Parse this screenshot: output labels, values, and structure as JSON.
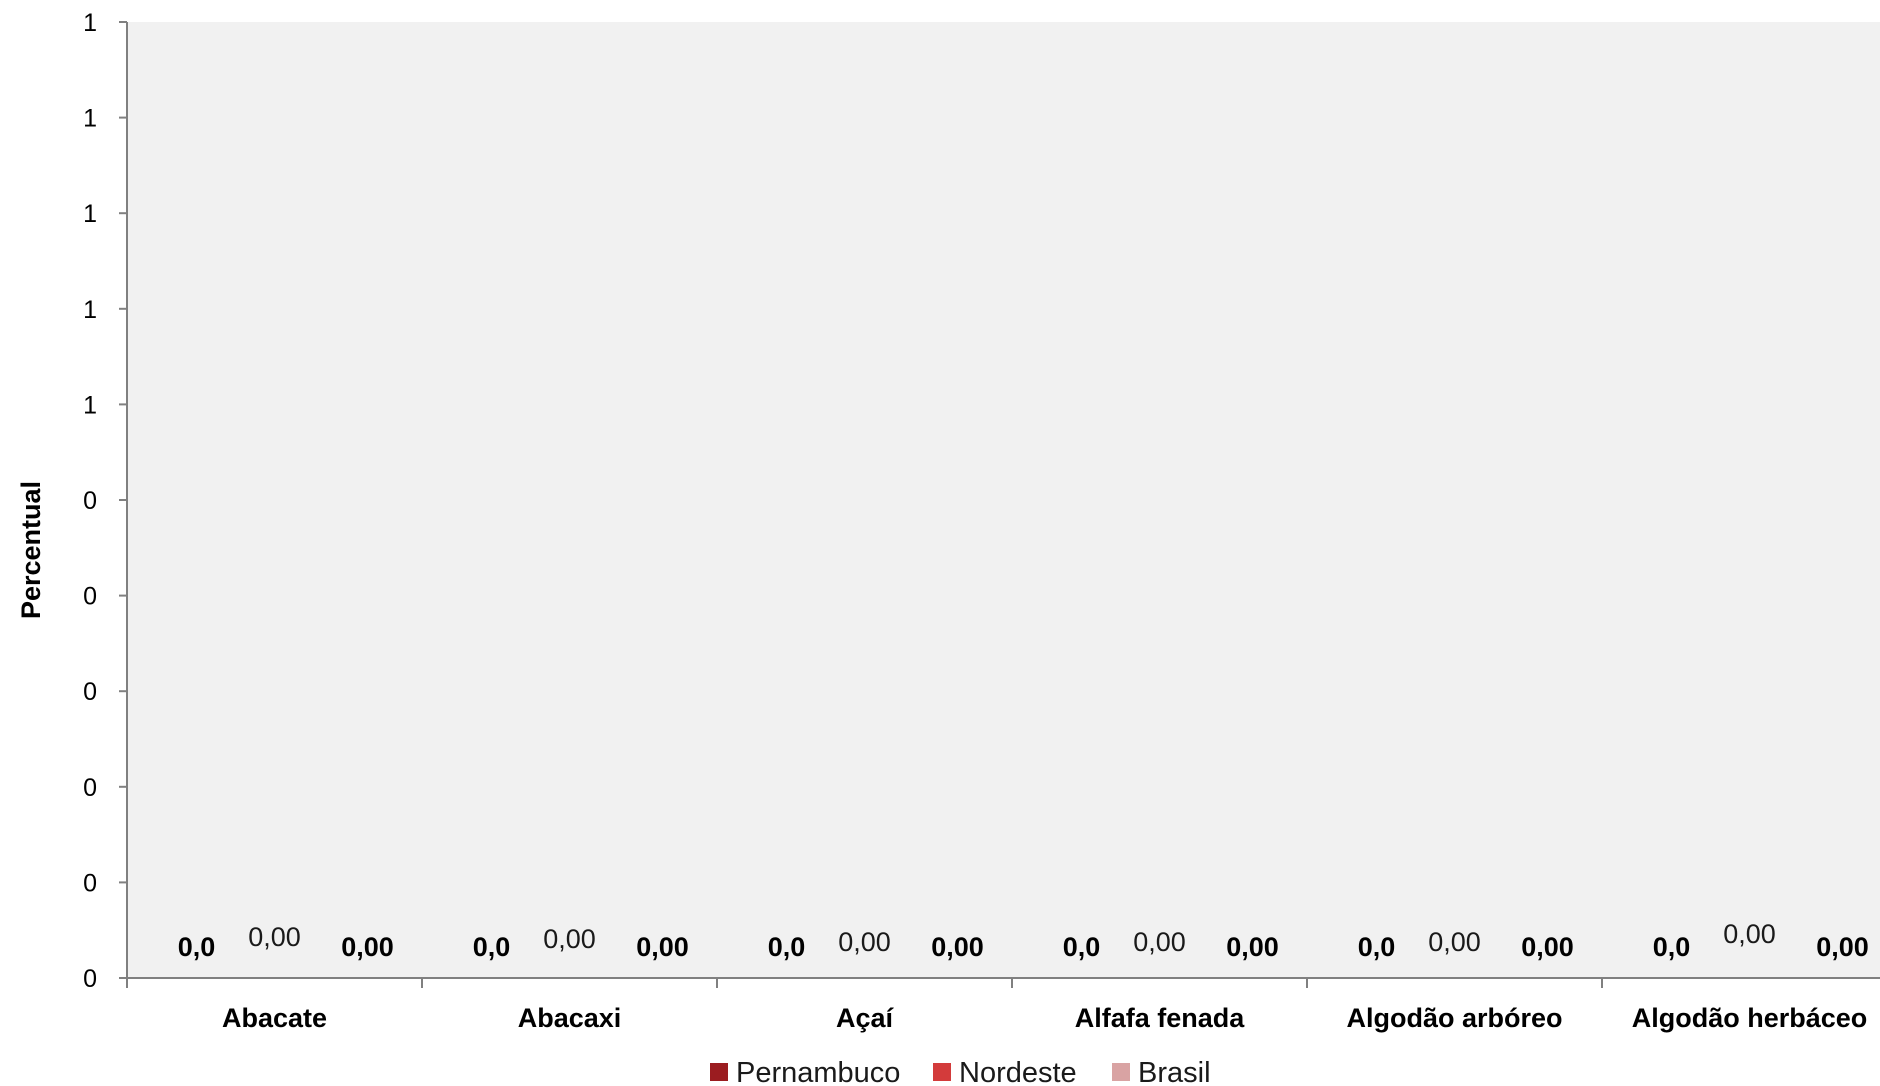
{
  "chart_data": {
    "type": "bar",
    "title": "",
    "xlabel": "",
    "ylabel": "Percentual",
    "categories": [
      "Abacate",
      "Abacaxi",
      "Açaí",
      "Alfafa fenada",
      "Algodão arbóreo",
      "Algodão herbáceo"
    ],
    "y_tick_labels": [
      "0",
      "0",
      "0",
      "0",
      "0",
      "0",
      "1",
      "1",
      "1",
      "1",
      "1",
      "1"
    ],
    "ylim": [
      0,
      1
    ],
    "grid": false,
    "legend_position": "bottom",
    "plot_background": "#f1f1f1",
    "series": [
      {
        "name": "Pernambuco",
        "color": "#9b1c20",
        "values": [
          0,
          0,
          0,
          0,
          0,
          0
        ],
        "labels": [
          "0,0",
          "0,0",
          "0,0",
          "0,0",
          "0,0",
          "0,0"
        ]
      },
      {
        "name": "Nordeste",
        "color": "#d33b3b",
        "values": [
          0,
          0,
          0,
          0,
          0,
          0
        ],
        "labels": [
          "0,00",
          "0,00",
          "0,00",
          "0,00",
          "0,00",
          "0,00"
        ]
      },
      {
        "name": "Brasil",
        "color": "#d9a3a3",
        "values": [
          0,
          0,
          0,
          0,
          0,
          0
        ],
        "labels": [
          "0,00",
          "0,00",
          "0,00",
          "0,00",
          "0,00",
          "0,00"
        ]
      }
    ]
  }
}
